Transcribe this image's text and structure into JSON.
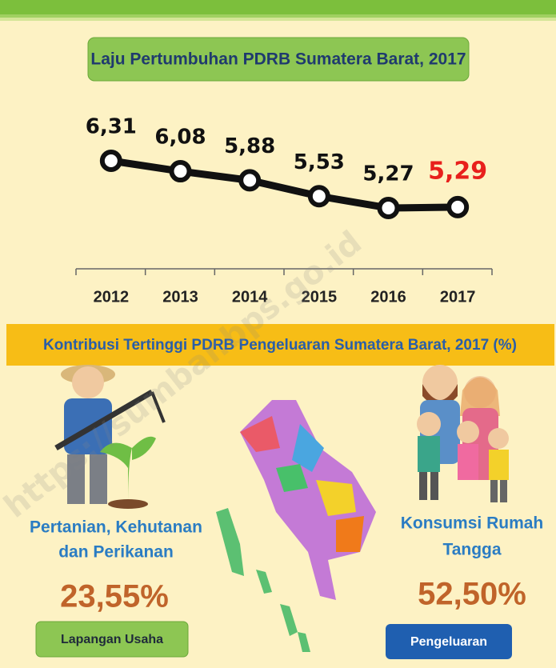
{
  "chart_data": {
    "type": "line",
    "title": "Laju Pertumbuhan PDRB Sumatera Barat, 2017",
    "categories": [
      "2012",
      "2013",
      "2014",
      "2015",
      "2016",
      "2017"
    ],
    "values": [
      6.31,
      6.08,
      5.88,
      5.53,
      5.27,
      5.29
    ],
    "value_labels": [
      "6,31",
      "6,08",
      "5,88",
      "5,53",
      "5,27",
      "5,29"
    ],
    "value_label_colors": [
      "#111111",
      "#111111",
      "#111111",
      "#111111",
      "#111111",
      "#e8201c"
    ],
    "color": "#111111"
  },
  "section": {
    "title": "Kontribusi Tertinggi PDRB Pengeluaran Sumatera Barat, 2017 (%)",
    "left": {
      "label_lines": [
        "Pertanian, Kehutanan",
        "dan Perikanan"
      ],
      "value": "23,55%",
      "button": "Lapangan Usaha"
    },
    "right": {
      "label_lines": [
        "Konsumsi Rumah",
        "Tangga"
      ],
      "value": "52,50%",
      "button": "Pengeluaran"
    }
  },
  "watermark": "https://sumbar.bps.go.id"
}
